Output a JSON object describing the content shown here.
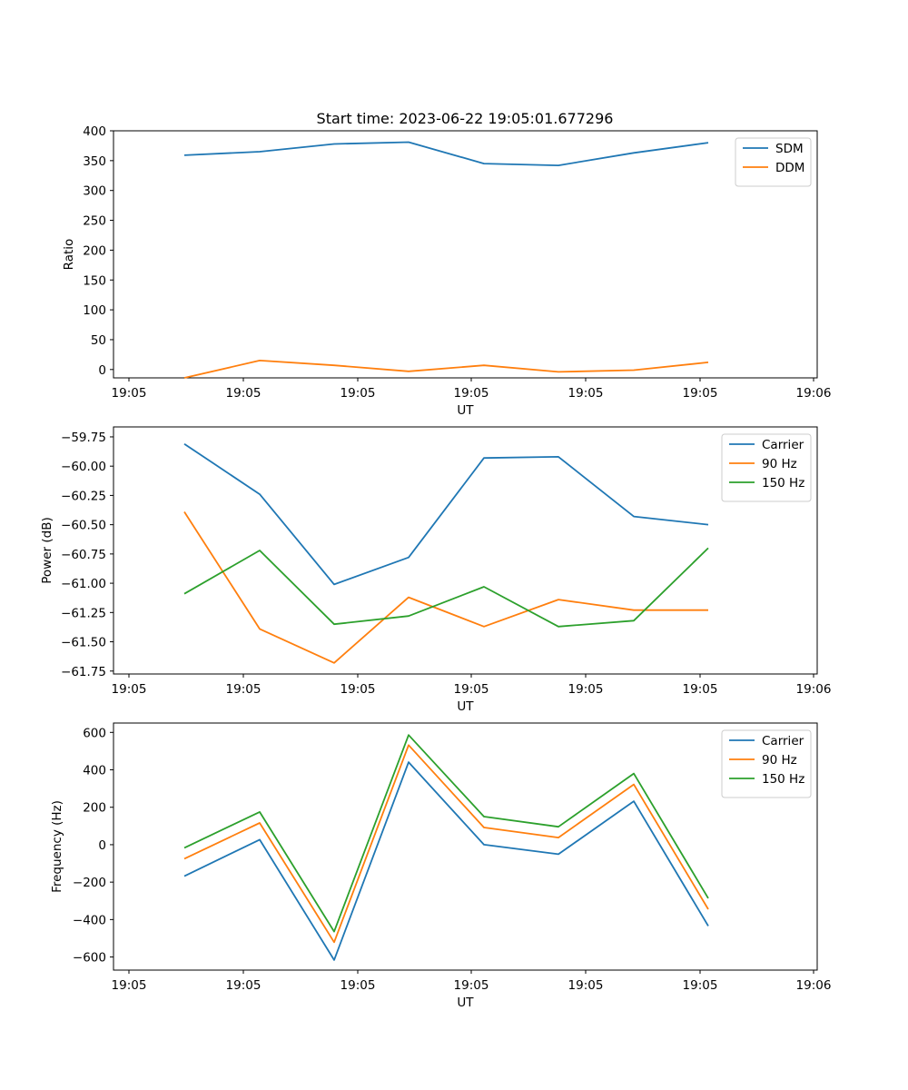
{
  "figure": {
    "title": "Start time: 2023-06-22 19:05:01.677296"
  },
  "chart_data": [
    {
      "type": "line",
      "title": "Start time: 2023-06-22 19:05:01.677296",
      "xlabel": "UT",
      "ylabel": "Ratio",
      "x_ticks": [
        "19:05",
        "19:05",
        "19:05",
        "19:05",
        "19:05",
        "19:05",
        "19:06"
      ],
      "y_ticks": [
        0,
        50,
        100,
        150,
        200,
        250,
        300,
        350,
        400
      ],
      "ylim": [
        -14,
        400
      ],
      "legend": "top-right",
      "grid": false,
      "series": [
        {
          "name": "SDM",
          "color": "#1f77b4",
          "values": [
            359,
            365,
            378,
            381,
            345,
            342,
            363,
            380
          ]
        },
        {
          "name": "DDM",
          "color": "#ff7f0e",
          "values": [
            -14,
            15,
            7,
            -3,
            7,
            -4,
            -1,
            12
          ]
        }
      ]
    },
    {
      "type": "line",
      "title": "",
      "xlabel": "UT",
      "ylabel": "Power (dB)",
      "x_ticks": [
        "19:05",
        "19:05",
        "19:05",
        "19:05",
        "19:05",
        "19:05",
        "19:06"
      ],
      "y_ticks": [
        -59.75,
        -60.0,
        -60.25,
        -60.5,
        -60.75,
        -61.0,
        -61.25,
        -61.5,
        -61.75
      ],
      "y_tick_labels": [
        "−59.75",
        "−60.00",
        "−60.25",
        "−60.50",
        "−60.75",
        "−61.00",
        "−61.25",
        "−61.50",
        "−61.75"
      ],
      "ylim": [
        -61.775,
        -59.665
      ],
      "legend": "top-right",
      "grid": false,
      "series": [
        {
          "name": "Carrier",
          "color": "#1f77b4",
          "values": [
            -59.81,
            -60.24,
            -61.01,
            -60.78,
            -59.93,
            -59.92,
            -60.43,
            -60.5
          ]
        },
        {
          "name": "90 Hz",
          "color": "#ff7f0e",
          "values": [
            -60.39,
            -61.39,
            -61.68,
            -61.12,
            -61.37,
            -61.14,
            -61.23,
            -61.23
          ]
        },
        {
          "name": "150 Hz",
          "color": "#2ca02c",
          "values": [
            -61.09,
            -60.72,
            -61.35,
            -61.28,
            -61.03,
            -61.37,
            -61.32,
            -60.7
          ]
        }
      ]
    },
    {
      "type": "line",
      "title": "",
      "xlabel": "UT",
      "ylabel": "Frequency (Hz)",
      "x_ticks": [
        "19:05",
        "19:05",
        "19:05",
        "19:05",
        "19:05",
        "19:05",
        "19:06"
      ],
      "y_ticks": [
        600,
        400,
        200,
        0,
        -200,
        -400,
        -600
      ],
      "y_tick_labels": [
        "600",
        "400",
        "200",
        "0",
        "−200",
        "−400",
        "−600"
      ],
      "ylim": [
        -670,
        650
      ],
      "legend": "top-right",
      "grid": false,
      "series": [
        {
          "name": "Carrier",
          "color": "#1f77b4",
          "values": [
            -168,
            27,
            -616,
            441,
            0,
            -51,
            232,
            -434
          ]
        },
        {
          "name": "90 Hz",
          "color": "#ff7f0e",
          "values": [
            -75,
            116,
            -521,
            532,
            92,
            38,
            322,
            -345
          ]
        },
        {
          "name": "150 Hz",
          "color": "#2ca02c",
          "values": [
            -17,
            175,
            -464,
            586,
            150,
            96,
            380,
            -286
          ]
        }
      ]
    }
  ]
}
